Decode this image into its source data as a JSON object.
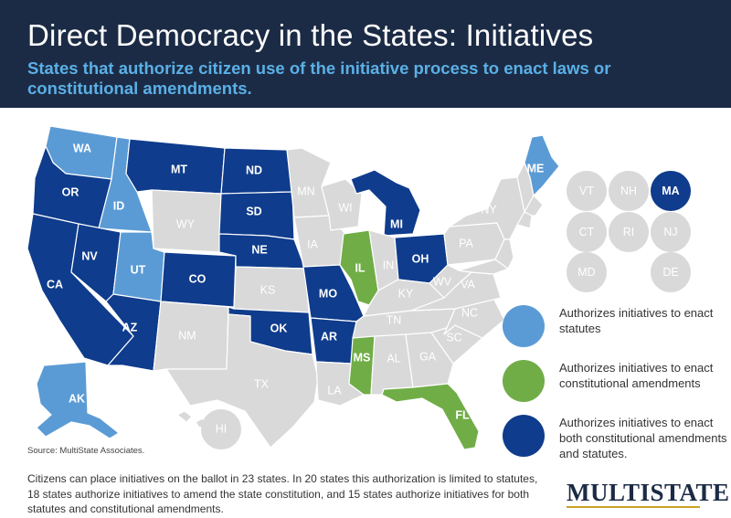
{
  "header": {
    "title": "Direct Democracy in the States: Initiatives",
    "subtitle": "States that authorize citizen use of the initiative process to enact laws or constitutional amendments."
  },
  "colors": {
    "statutes": "#5b9bd5",
    "constitutional": "#70ad47",
    "both": "#0f3c8c",
    "none": "#d9d9d9"
  },
  "states": {
    "WA": {
      "label": "WA",
      "category": "statutes"
    },
    "OR": {
      "label": "OR",
      "category": "both"
    },
    "CA": {
      "label": "CA",
      "category": "both"
    },
    "ID": {
      "label": "ID",
      "category": "statutes"
    },
    "NV": {
      "label": "NV",
      "category": "both"
    },
    "UT": {
      "label": "UT",
      "category": "statutes"
    },
    "AZ": {
      "label": "AZ",
      "category": "both"
    },
    "MT": {
      "label": "MT",
      "category": "both"
    },
    "WY": {
      "label": "WY",
      "category": "none"
    },
    "CO": {
      "label": "CO",
      "category": "both"
    },
    "NM": {
      "label": "NM",
      "category": "none"
    },
    "ND": {
      "label": "ND",
      "category": "both"
    },
    "SD": {
      "label": "SD",
      "category": "both"
    },
    "NE": {
      "label": "NE",
      "category": "both"
    },
    "KS": {
      "label": "KS",
      "category": "none"
    },
    "OK": {
      "label": "OK",
      "category": "both"
    },
    "TX": {
      "label": "TX",
      "category": "none"
    },
    "MN": {
      "label": "MN",
      "category": "none"
    },
    "IA": {
      "label": "IA",
      "category": "none"
    },
    "MO": {
      "label": "MO",
      "category": "both"
    },
    "AR": {
      "label": "AR",
      "category": "both"
    },
    "LA": {
      "label": "LA",
      "category": "none"
    },
    "WI": {
      "label": "WI",
      "category": "none"
    },
    "IL": {
      "label": "IL",
      "category": "constitutional"
    },
    "MI": {
      "label": "MI",
      "category": "both"
    },
    "IN": {
      "label": "IN",
      "category": "none"
    },
    "OH": {
      "label": "OH",
      "category": "both"
    },
    "KY": {
      "label": "KY",
      "category": "none"
    },
    "TN": {
      "label": "TN",
      "category": "none"
    },
    "MS": {
      "label": "MS",
      "category": "constitutional"
    },
    "AL": {
      "label": "AL",
      "category": "none"
    },
    "GA": {
      "label": "GA",
      "category": "none"
    },
    "FL": {
      "label": "FL",
      "category": "constitutional"
    },
    "SC": {
      "label": "SC",
      "category": "none"
    },
    "NC": {
      "label": "NC",
      "category": "none"
    },
    "VA": {
      "label": "VA",
      "category": "none"
    },
    "WV": {
      "label": "WV",
      "category": "none"
    },
    "PA": {
      "label": "PA",
      "category": "none"
    },
    "NY": {
      "label": "NY",
      "category": "none"
    },
    "ME": {
      "label": "ME",
      "category": "statutes"
    },
    "AK": {
      "label": "AK",
      "category": "statutes"
    },
    "HI": {
      "label": "HI",
      "category": "none"
    }
  },
  "small_states": [
    {
      "label": "VT",
      "category": "none"
    },
    {
      "label": "NH",
      "category": "none"
    },
    {
      "label": "MA",
      "category": "both"
    },
    {
      "label": "CT",
      "category": "none"
    },
    {
      "label": "RI",
      "category": "none"
    },
    {
      "label": "NJ",
      "category": "none"
    },
    {
      "label": "MD",
      "category": "none"
    },
    {
      "label": "DE",
      "category": "none"
    }
  ],
  "legend": [
    {
      "category": "statutes",
      "text": "Authorizes initiatives to enact statutes"
    },
    {
      "category": "constitutional",
      "text": "Authorizes initiatives to enact constitutional amendments"
    },
    {
      "category": "both",
      "text": "Authorizes initiatives to enact both constitutional amendments and statutes."
    }
  ],
  "source": "Source: MultiState Associates.",
  "footer": "Citizens can place initiatives on the ballot in 23 states. In 20 states this authorization is limited to statutes, 18 states authorize initiatives to amend the state constitution, and 15 states authorize initiatives for both statutes and constitutional amendments.",
  "logo": "MultiState"
}
